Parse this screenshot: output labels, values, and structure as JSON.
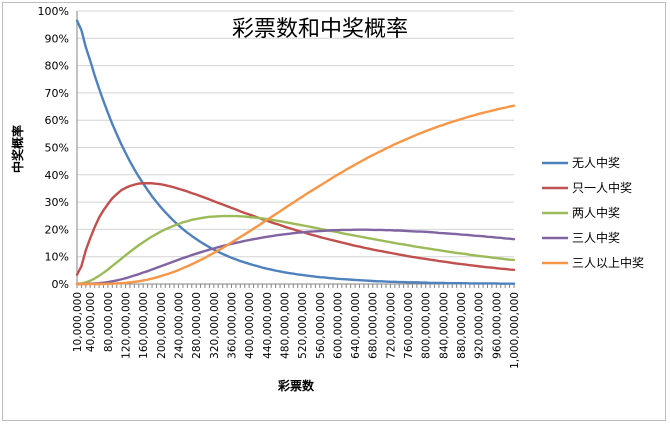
{
  "chart_data": {
    "type": "line",
    "title": "彩票数和中奖概率",
    "xlabel": "彩票数",
    "ylabel": "中奖概率",
    "x": [
      10000000,
      20000000,
      30000000,
      40000000,
      50000000,
      60000000,
      70000000,
      80000000,
      90000000,
      100000000,
      110000000,
      120000000,
      130000000,
      140000000,
      150000000,
      160000000,
      170000000,
      180000000,
      190000000,
      200000000,
      210000000,
      220000000,
      230000000,
      240000000,
      250000000,
      260000000,
      270000000,
      280000000,
      290000000,
      300000000,
      310000000,
      320000000,
      330000000,
      340000000,
      350000000,
      360000000,
      370000000,
      380000000,
      390000000,
      400000000,
      410000000,
      420000000,
      430000000,
      440000000,
      450000000,
      460000000,
      470000000,
      480000000,
      490000000,
      500000000,
      510000000,
      520000000,
      530000000,
      540000000,
      550000000,
      560000000,
      570000000,
      580000000,
      590000000,
      600000000,
      610000000,
      620000000,
      630000000,
      640000000,
      650000000,
      660000000,
      670000000,
      680000000,
      690000000,
      700000000,
      710000000,
      720000000,
      730000000,
      740000000,
      750000000,
      760000000,
      770000000,
      780000000,
      790000000,
      800000000,
      810000000,
      820000000,
      830000000,
      840000000,
      850000000,
      860000000,
      870000000,
      880000000,
      890000000,
      900000000,
      910000000,
      920000000,
      930000000,
      940000000,
      950000000,
      960000000,
      970000000,
      980000000,
      990000000,
      1000000000
    ],
    "xlim": [
      10000000,
      1000000000
    ],
    "ylim": [
      0,
      100
    ],
    "x_tick_labels": [
      "10,000,000",
      "40,000,000",
      "80,000,000",
      "120,000,000",
      "160,000,000",
      "200,000,000",
      "240,000,000",
      "280,000,000",
      "320,000,000",
      "360,000,000",
      "400,000,000",
      "440,000,000",
      "480,000,000",
      "520,000,000",
      "560,000,000",
      "600,000,000",
      "640,000,000",
      "680,000,000",
      "720,000,000",
      "760,000,000",
      "800,000,000",
      "840,000,000",
      "880,000,000",
      "920,000,000",
      "960,000,000",
      "1,000,000,000"
    ],
    "y_tick_labels": [
      "0%",
      "10%",
      "20%",
      "30%",
      "40%",
      "50%",
      "60%",
      "70%",
      "80%",
      "90%",
      "100%"
    ],
    "grid": true,
    "legend_position": "right",
    "series": [
      {
        "name": "无人中奖",
        "color": "#4f81bd",
        "values": [
          96.5,
          93.0,
          86.7,
          81.8,
          76.4,
          71.6,
          67.0,
          62.7,
          58.6,
          54.9,
          51.3,
          48.0,
          44.9,
          42.0,
          39.3,
          36.8,
          34.4,
          32.1,
          30.1,
          28.1,
          26.3,
          24.6,
          23.0,
          21.5,
          20.1,
          18.8,
          17.6,
          16.5,
          15.4,
          14.4,
          13.5,
          12.6,
          11.8,
          11.0,
          10.3,
          9.6,
          9.0,
          8.4,
          7.9,
          7.4,
          6.9,
          6.5,
          6.0,
          5.6,
          5.3,
          4.9,
          4.6,
          4.3,
          4.0,
          3.8,
          3.5,
          3.3,
          3.1,
          2.9,
          2.7,
          2.5,
          2.4,
          2.2,
          2.1,
          1.9,
          1.8,
          1.7,
          1.6,
          1.5,
          1.4,
          1.3,
          1.2,
          1.1,
          1.0,
          1.0,
          0.9,
          0.8,
          0.8,
          0.7,
          0.7,
          0.6,
          0.6,
          0.6,
          0.5,
          0.5,
          0.4,
          0.4,
          0.4,
          0.4,
          0.3,
          0.3,
          0.3,
          0.3,
          0.3,
          0.2,
          0.2,
          0.2,
          0.2,
          0.2,
          0.2,
          0.2,
          0.1,
          0.1,
          0.1,
          0.1
        ]
      },
      {
        "name": "只一人中奖",
        "color": "#c0504d",
        "values": [
          3.4,
          6.5,
          12.4,
          16.8,
          20.8,
          24.3,
          27.0,
          29.3,
          31.4,
          32.9,
          34.3,
          35.2,
          35.9,
          36.4,
          36.8,
          36.9,
          36.9,
          36.9,
          36.7,
          36.5,
          36.2,
          35.8,
          35.4,
          34.9,
          34.4,
          33.9,
          33.3,
          32.8,
          32.2,
          31.6,
          31.0,
          30.3,
          29.7,
          29.1,
          28.5,
          27.9,
          27.3,
          26.6,
          26.0,
          25.5,
          24.9,
          24.3,
          23.7,
          23.2,
          22.6,
          22.1,
          21.6,
          21.0,
          20.5,
          20.0,
          19.5,
          19.1,
          18.6,
          18.1,
          17.7,
          17.2,
          16.8,
          16.4,
          16.0,
          15.6,
          15.2,
          14.8,
          14.4,
          14.0,
          13.7,
          13.3,
          13.0,
          12.6,
          12.3,
          12.0,
          11.7,
          11.4,
          11.1,
          10.8,
          10.5,
          10.2,
          9.9,
          9.7,
          9.4,
          9.2,
          8.9,
          8.7,
          8.4,
          8.2,
          8.0,
          7.7,
          7.5,
          7.3,
          7.1,
          6.9,
          6.7,
          6.5,
          6.3,
          6.1,
          6.0,
          5.8,
          5.6,
          5.5,
          5.3,
          5.2
        ]
      },
      {
        "name": "两人中奖",
        "color": "#9bbb59",
        "values": [
          0.1,
          0.2,
          0.6,
          1.2,
          2.0,
          3.0,
          4.1,
          5.3,
          6.6,
          7.9,
          9.2,
          10.5,
          11.8,
          13.0,
          14.2,
          15.3,
          16.4,
          17.4,
          18.3,
          19.2,
          20.0,
          20.7,
          21.4,
          22.0,
          22.6,
          23.0,
          23.5,
          23.8,
          24.1,
          24.4,
          24.6,
          24.7,
          24.8,
          24.9,
          24.9,
          24.9,
          24.9,
          24.8,
          24.7,
          24.5,
          24.4,
          24.2,
          24.0,
          23.8,
          23.5,
          23.3,
          23.0,
          22.7,
          22.4,
          22.1,
          21.8,
          21.5,
          21.2,
          20.9,
          20.6,
          20.2,
          19.9,
          19.6,
          19.3,
          19.0,
          18.6,
          18.3,
          18.0,
          17.7,
          17.4,
          17.1,
          16.8,
          16.5,
          16.2,
          15.9,
          15.6,
          15.3,
          15.0,
          14.7,
          14.5,
          14.2,
          13.9,
          13.6,
          13.4,
          13.1,
          12.9,
          12.6,
          12.4,
          12.1,
          11.9,
          11.6,
          11.4,
          11.2,
          11.0,
          10.7,
          10.5,
          10.3,
          10.1,
          9.9,
          9.7,
          9.5,
          9.3,
          9.1,
          8.9,
          8.8
        ]
      },
      {
        "name": "三人中奖",
        "color": "#8064a2",
        "values": [
          0.0,
          0.0,
          0.0,
          0.1,
          0.2,
          0.3,
          0.5,
          0.7,
          1.0,
          1.3,
          1.7,
          2.1,
          2.6,
          3.1,
          3.6,
          4.2,
          4.7,
          5.3,
          5.9,
          6.5,
          7.1,
          7.7,
          8.3,
          8.9,
          9.5,
          10.0,
          10.6,
          11.1,
          11.6,
          12.1,
          12.6,
          13.0,
          13.5,
          13.9,
          14.3,
          14.7,
          15.1,
          15.4,
          15.8,
          16.1,
          16.4,
          16.7,
          17.0,
          17.3,
          17.5,
          17.8,
          18.0,
          18.2,
          18.4,
          18.6,
          18.8,
          18.9,
          19.1,
          19.2,
          19.3,
          19.4,
          19.5,
          19.6,
          19.7,
          19.7,
          19.8,
          19.8,
          19.8,
          19.9,
          19.9,
          19.9,
          19.9,
          19.8,
          19.8,
          19.8,
          19.7,
          19.7,
          19.6,
          19.6,
          19.5,
          19.4,
          19.3,
          19.2,
          19.2,
          19.1,
          19.0,
          18.9,
          18.7,
          18.6,
          18.5,
          18.4,
          18.3,
          18.1,
          18.0,
          17.9,
          17.7,
          17.6,
          17.5,
          17.3,
          17.2,
          17.0,
          16.9,
          16.7,
          16.6,
          16.4
        ]
      },
      {
        "name": "三人以上中奖",
        "color": "#f79646",
        "values": [
          0.0,
          0.0,
          0.0,
          0.0,
          0.0,
          0.0,
          0.0,
          0.1,
          0.1,
          0.2,
          0.3,
          0.4,
          0.6,
          0.8,
          1.0,
          1.3,
          1.6,
          2.0,
          2.4,
          2.9,
          3.4,
          3.9,
          4.5,
          5.1,
          5.8,
          6.5,
          7.2,
          8.0,
          8.8,
          9.6,
          10.5,
          11.4,
          12.3,
          13.2,
          14.2,
          15.2,
          16.2,
          17.2,
          18.2,
          19.2,
          20.3,
          21.3,
          22.4,
          23.4,
          24.5,
          25.6,
          26.6,
          27.7,
          28.8,
          29.8,
          30.9,
          31.9,
          33.0,
          34.0,
          35.0,
          36.0,
          37.0,
          38.0,
          39.0,
          40.0,
          40.9,
          41.9,
          42.8,
          43.7,
          44.6,
          45.5,
          46.4,
          47.2,
          48.0,
          48.8,
          49.6,
          50.4,
          51.2,
          51.9,
          52.6,
          53.3,
          54.0,
          54.7,
          55.3,
          56.0,
          56.6,
          57.2,
          57.8,
          58.3,
          58.9,
          59.4,
          59.9,
          60.4,
          60.9,
          61.4,
          61.8,
          62.3,
          62.7,
          63.1,
          63.5,
          63.9,
          64.3,
          64.6,
          65.0,
          65.3
        ]
      }
    ]
  }
}
